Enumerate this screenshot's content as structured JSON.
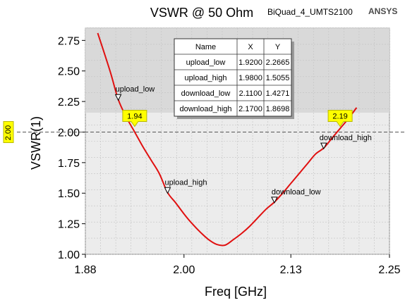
{
  "header": {
    "title": "VSWR @ 50 Ohm",
    "design": "BiQuad_4_UMTS2100",
    "brand": "ANSYS"
  },
  "chart_data": {
    "type": "line",
    "title": "VSWR @ 50 Ohm",
    "xlabel": "Freq [GHz]",
    "ylabel": "VSWR(1)",
    "xlim": [
      1.88,
      2.25
    ],
    "ylim": [
      1.0,
      2.85
    ],
    "xticks": [
      1.88,
      2.0,
      2.13,
      2.25
    ],
    "xtick_labels": [
      "1.88",
      "2.00",
      "2.13",
      "2.25"
    ],
    "yticks": [
      1.0,
      1.25,
      1.5,
      1.75,
      2.0,
      2.25,
      2.5,
      2.75
    ],
    "ytick_labels": [
      "1.00",
      "1.25",
      "1.50",
      "1.75",
      "2.00",
      "2.25",
      "2.50",
      "2.75"
    ],
    "grid": true,
    "series": [
      {
        "name": "VSWR(1)",
        "color": "#e01010",
        "x": [
          1.895,
          1.91,
          1.92,
          1.93,
          1.94,
          1.95,
          1.96,
          1.97,
          1.98,
          1.99,
          2.0,
          2.01,
          2.02,
          2.03,
          2.04,
          2.05,
          2.06,
          2.07,
          2.08,
          2.09,
          2.1,
          2.11,
          2.12,
          2.13,
          2.14,
          2.15,
          2.16,
          2.17,
          2.18,
          2.19,
          2.2,
          2.21
        ],
        "y": [
          2.81,
          2.5,
          2.2665,
          2.12,
          2.0,
          1.88,
          1.77,
          1.66,
          1.5055,
          1.42,
          1.33,
          1.25,
          1.18,
          1.12,
          1.08,
          1.075,
          1.12,
          1.17,
          1.23,
          1.3,
          1.37,
          1.4271,
          1.5,
          1.58,
          1.66,
          1.74,
          1.82,
          1.8698,
          1.95,
          2.03,
          2.11,
          2.2
        ]
      }
    ],
    "reference_line": {
      "y": 2.0,
      "label": "2.00",
      "style": "dashed"
    },
    "markers": [
      {
        "name": "upload_low",
        "x": 1.92,
        "y": 2.2665
      },
      {
        "name": "upload_high",
        "x": 1.98,
        "y": 1.5055
      },
      {
        "name": "download_low",
        "x": 2.11,
        "y": 1.4271
      },
      {
        "name": "download_high",
        "x": 2.17,
        "y": 1.8698
      }
    ],
    "intersections": [
      {
        "label": "1.94",
        "x": 1.94,
        "y": 2.0
      },
      {
        "label": "2.19",
        "x": 2.19,
        "y": 2.0
      }
    ],
    "marker_table": {
      "columns": [
        "Name",
        "X",
        "Y"
      ],
      "rows": [
        [
          "upload_low",
          "1.9200",
          "2.2665"
        ],
        [
          "upload_high",
          "1.9800",
          "1.5055"
        ],
        [
          "download_low",
          "2.1100",
          "1.4271"
        ],
        [
          "download_high",
          "2.1700",
          "1.8698"
        ]
      ]
    }
  }
}
